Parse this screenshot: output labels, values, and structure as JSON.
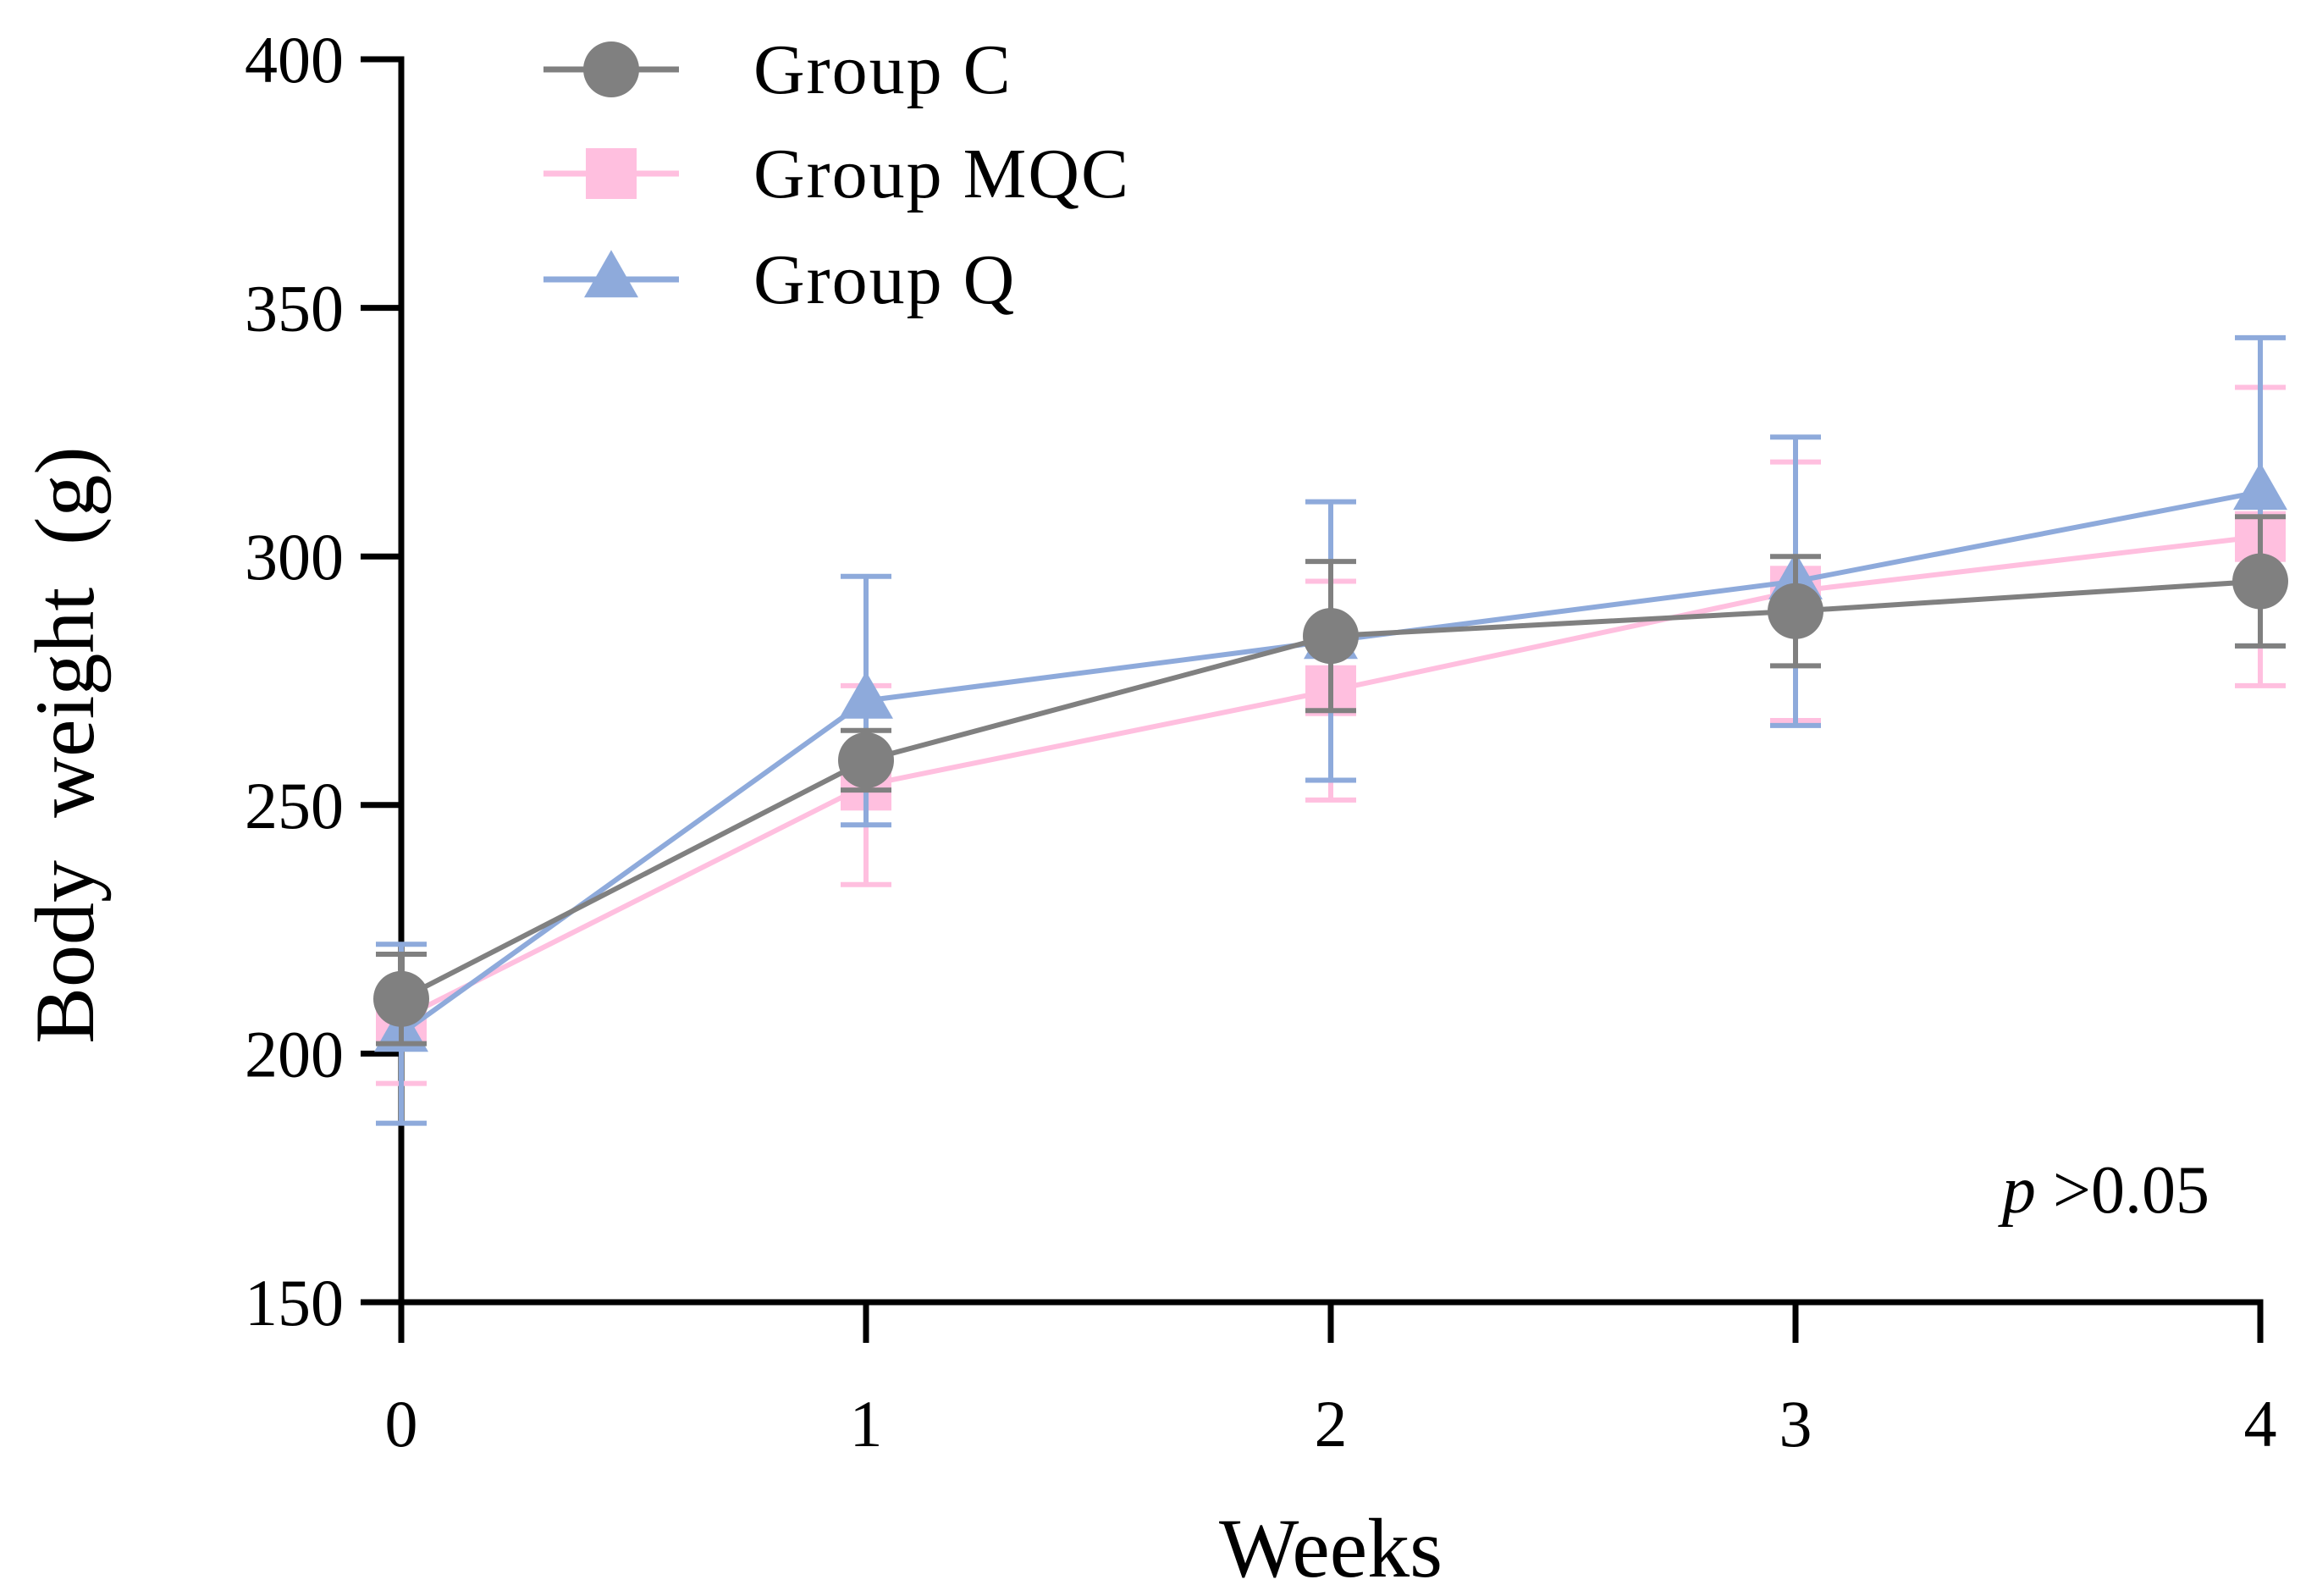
{
  "chart_data": {
    "type": "line",
    "title": "",
    "xlabel": "Weeks",
    "ylabel": "Body  weight  (g)",
    "x": [
      0,
      1,
      2,
      3,
      4
    ],
    "x_ticks": [
      "0",
      "1",
      "2",
      "3",
      "4"
    ],
    "y_ticks": [
      "150",
      "200",
      "250",
      "300",
      "350",
      "400"
    ],
    "ylim": [
      150,
      400
    ],
    "xlim": [
      0,
      4
    ],
    "grid": false,
    "legend_position": "top-left",
    "series": [
      {
        "name": "Group C",
        "color": "#808080",
        "marker": "circle",
        "values": [
          211,
          259,
          284,
          289,
          295
        ],
        "errors": [
          9,
          6,
          15,
          11,
          13
        ]
      },
      {
        "name": "Group MQC",
        "color": "#FFBFDF",
        "marker": "square",
        "values": [
          207,
          254,
          273,
          293,
          304
        ],
        "errors": [
          13,
          20,
          22,
          26,
          30
        ]
      },
      {
        "name": "Group Q",
        "color": "#8EAADB",
        "marker": "triangle",
        "values": [
          204,
          271,
          283,
          295,
          313
        ],
        "errors": [
          18,
          25,
          28,
          29,
          31
        ]
      }
    ],
    "annotation": {
      "italic": "p",
      "text": " >0.05"
    }
  }
}
